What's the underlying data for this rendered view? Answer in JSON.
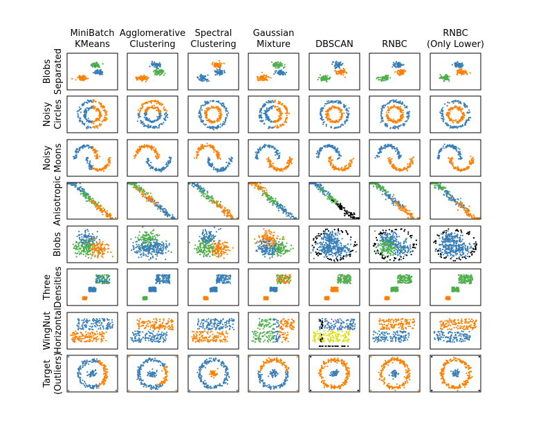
{
  "chart_data": {
    "type": "scatter",
    "grid": false,
    "title": "",
    "columns": [
      "MiniBatch\nKMeans",
      "Agglomerative\nClustering",
      "Spectral\nClustering",
      "Gaussian\nMixture",
      "DBSCAN",
      "RNBC",
      "RNBC\n(Only Lower)"
    ],
    "rows": [
      "Blobs\nSeparated",
      "Noisy\nCircles",
      "Noisy\nMoons",
      "Anisotropic",
      "Blobs",
      "Three\nDensities",
      "WingNut\nHorizontal",
      "Target\n(Outliers)"
    ],
    "colors": {
      "blue": "#377eb8",
      "orange": "#ff7f00",
      "green": "#4daf4a",
      "pink": "#f781bf",
      "brown": "#a65628",
      "purple": "#984ea3",
      "yellow": "#dede00",
      "noise": "#000000"
    }
  }
}
